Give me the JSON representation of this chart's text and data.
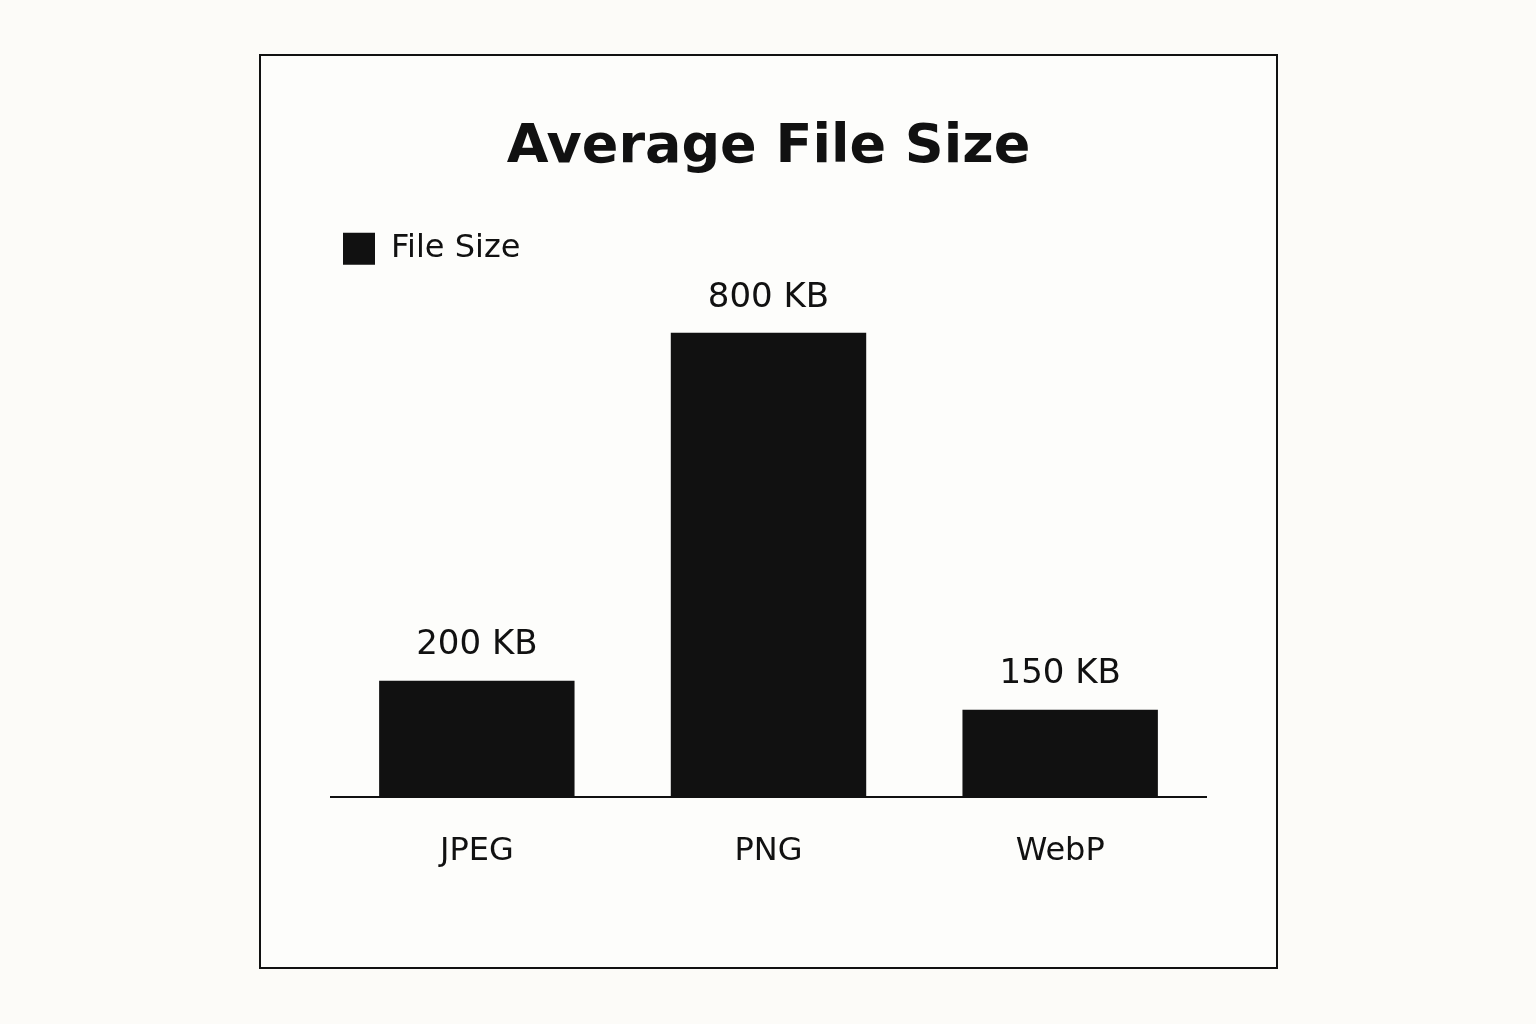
{
  "chart_data": {
    "type": "bar",
    "title": "Average File Size",
    "categories": [
      "JPEG",
      "PNG",
      "WebP"
    ],
    "series": [
      {
        "name": "File Size",
        "color": "#111111",
        "values": [
          200,
          800,
          150
        ],
        "value_labels": [
          "200 KB",
          "800 KB",
          "150 KB"
        ]
      }
    ],
    "legend": "top left",
    "grid": false
  }
}
